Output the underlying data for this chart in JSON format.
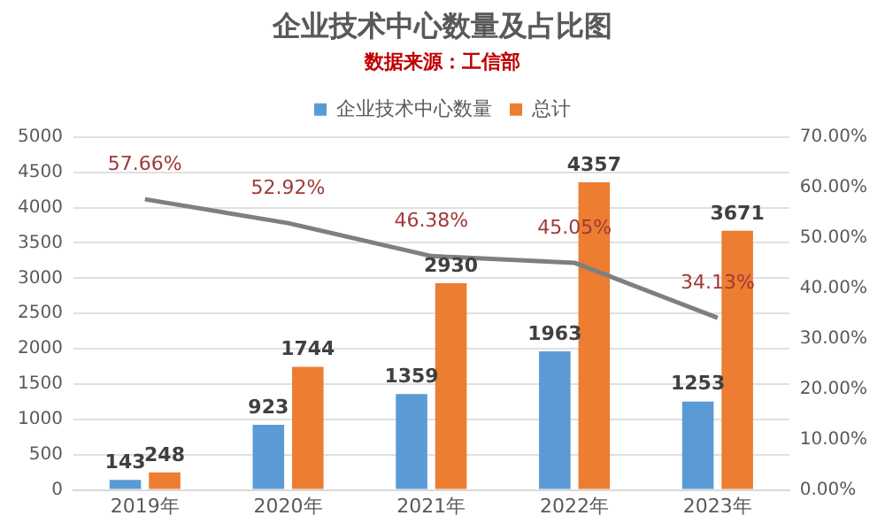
{
  "chart_data": {
    "type": "bar",
    "title": "企业技术中心数量及占比图",
    "subtitle": "数据来源：工信部",
    "categories": [
      "2019年",
      "2020年",
      "2021年",
      "2022年",
      "2023年"
    ],
    "series": [
      {
        "name": "企业技术中心数量",
        "color": "#5b9bd5",
        "values": [
          143,
          923,
          1359,
          1963,
          1253
        ],
        "value_labels": [
          "143",
          "923",
          "1359",
          "1963",
          "1253"
        ]
      },
      {
        "name": "总计",
        "color": "#ed7d31",
        "values": [
          248,
          1744,
          2930,
          4357,
          3671
        ],
        "value_labels": [
          "248",
          "1744",
          "2930",
          "4357",
          "3671"
        ]
      },
      {
        "type": "line",
        "axis": "y2",
        "color": "#7f7f7f",
        "values": [
          57.66,
          52.92,
          46.38,
          45.05,
          34.13
        ],
        "value_labels": [
          "57.66%",
          "52.92%",
          "46.38%",
          "45.05%",
          "34.13%"
        ]
      }
    ],
    "ylim": [
      0,
      5000
    ],
    "yticks": [
      0,
      500,
      1000,
      1500,
      2000,
      2500,
      3000,
      3500,
      4000,
      4500,
      5000
    ],
    "y2lim": [
      0,
      70
    ],
    "y2ticks": [
      {
        "value": 0,
        "label": "0.00%"
      },
      {
        "value": 10,
        "label": "10.00%"
      },
      {
        "value": 20,
        "label": "20.00%"
      },
      {
        "value": 30,
        "label": "30.00%"
      },
      {
        "value": 40,
        "label": "40.00%"
      },
      {
        "value": 50,
        "label": "50.00%"
      },
      {
        "value": 60,
        "label": "60.00%"
      },
      {
        "value": 70,
        "label": "70.00%"
      }
    ],
    "grid": "y",
    "legend": "top",
    "marker": "none",
    "line_style": "solid"
  }
}
